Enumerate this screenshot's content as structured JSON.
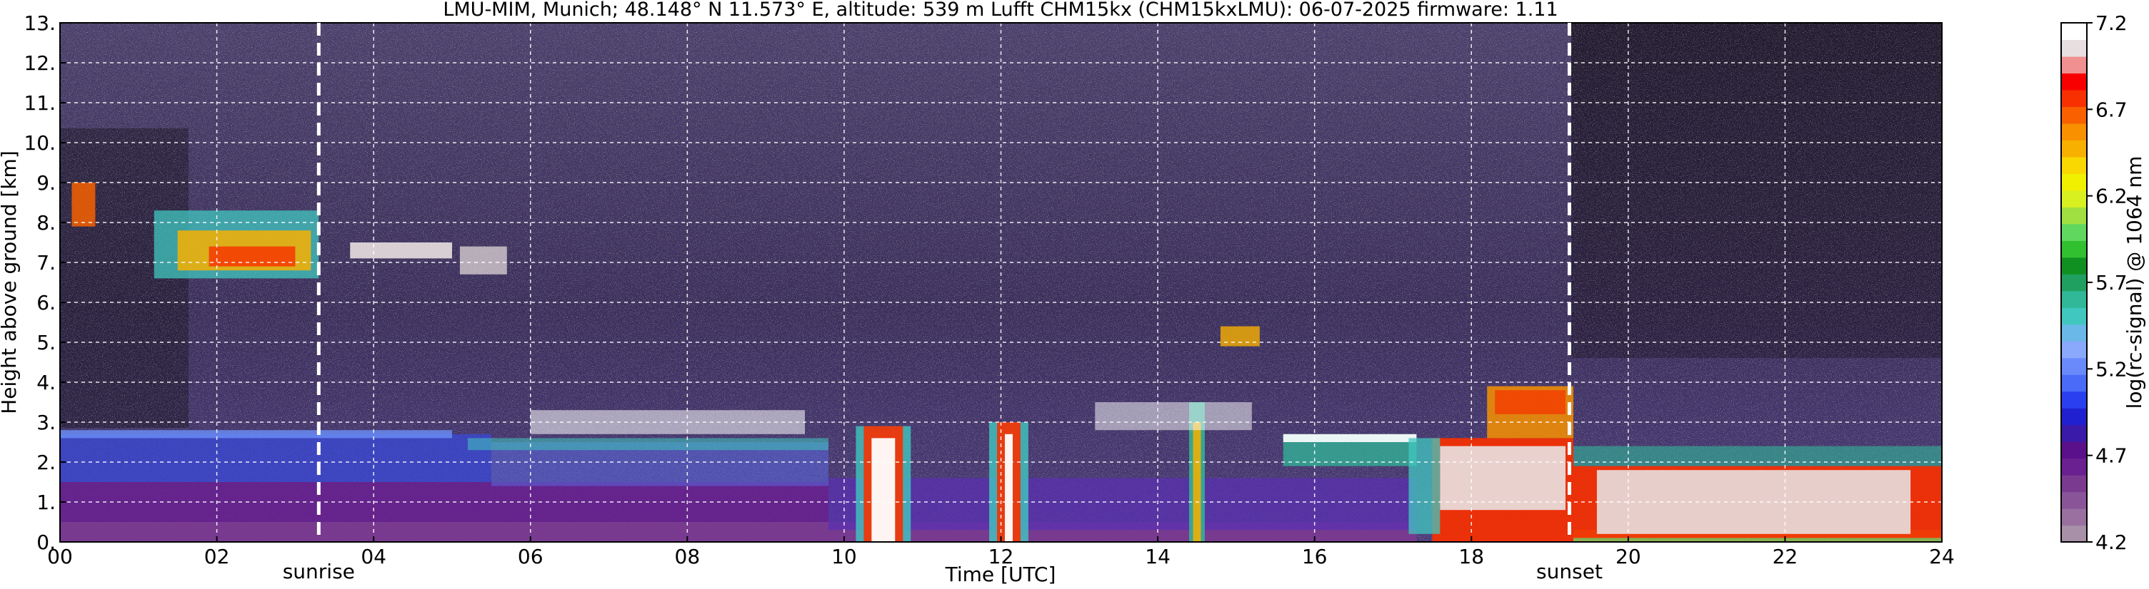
{
  "title": "LMU-MIM, Munich; 48.148° N 11.573° E, altitude: 539 m    Lufft CHM15kx (CHM15kxLMU): 06-07-2025    firmware: 1.11",
  "chart_data": {
    "type": "heatmap",
    "xlabel": "Time [UTC]",
    "ylabel": "Height above ground [km]",
    "xlim": [
      0,
      24
    ],
    "ylim": [
      0,
      13
    ],
    "x_ticks": [
      "00",
      "02",
      "04",
      "06",
      "08",
      "10",
      "12",
      "14",
      "16",
      "18",
      "20",
      "22",
      "24"
    ],
    "y_ticks": [
      "0.",
      "1.",
      "2.",
      "3.",
      "4.",
      "5.",
      "6.",
      "7.",
      "8.",
      "9.",
      "10.",
      "11.",
      "12.",
      "13."
    ],
    "grid": true,
    "events": [
      {
        "label": "sunrise",
        "time": 3.3
      },
      {
        "label": "sunset",
        "time": 19.25
      }
    ],
    "colorbar": {
      "label": "log(rc-signal) @ 1064 nm",
      "ticks": [
        "4.2",
        "4.7",
        "5.2",
        "5.7",
        "6.2",
        "6.7",
        "7.2"
      ],
      "min": 4.2,
      "max": 7.2,
      "colors": [
        "#a890a8",
        "#9a70a0",
        "#8a5598",
        "#7a3a90",
        "#6a2090",
        "#5a108a",
        "#3a1aa8",
        "#2020d0",
        "#2a40f0",
        "#4a6af8",
        "#6a8afc",
        "#8aa8fc",
        "#6ab8e8",
        "#40c8c0",
        "#30b898",
        "#20a060",
        "#109020",
        "#30c030",
        "#60d860",
        "#a0e040",
        "#d8f020",
        "#f0f000",
        "#f8d800",
        "#f8b000",
        "#f89000",
        "#f86000",
        "#f83000",
        "#f80000",
        "#f09090",
        "#e8e0e0",
        "#ffffff"
      ]
    }
  }
}
